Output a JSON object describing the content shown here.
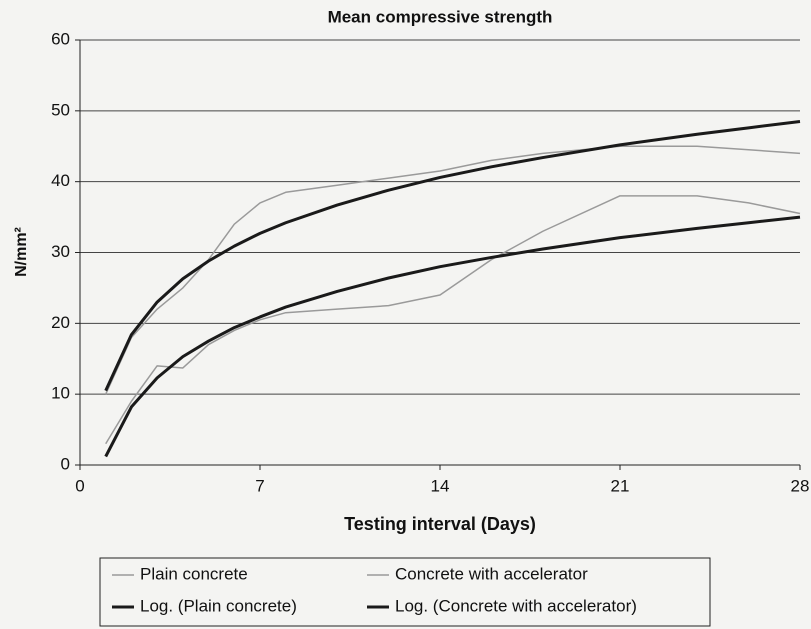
{
  "chart_data": {
    "type": "line",
    "title": "Mean compressive strength",
    "xlabel": "Testing interval (Days)",
    "ylabel": "N/mm²",
    "x": [
      1,
      2,
      3,
      4,
      5,
      6,
      7,
      8,
      10,
      12,
      14,
      16,
      18,
      21,
      24,
      26,
      28
    ],
    "series": [
      {
        "name": "Plain concrete",
        "color": "#9a9a9a",
        "width": 1.5,
        "values": [
          3,
          9,
          14,
          13.7,
          17,
          19,
          20.5,
          21.5,
          22,
          22.5,
          24,
          29,
          33,
          38,
          38,
          37,
          35.5
        ]
      },
      {
        "name": "Concrete with accelerator",
        "color": "#9a9a9a",
        "width": 1.5,
        "values": [
          10,
          18,
          22,
          25,
          29,
          34,
          37,
          38.5,
          39.5,
          40.5,
          41.5,
          43,
          44,
          45,
          45,
          44.5,
          44
        ]
      },
      {
        "name": "Log. (Plain concrete)",
        "color": "#1a1a1a",
        "width": 3,
        "values": [
          1.2,
          8.2,
          12.3,
          15.3,
          17.5,
          19.4,
          20.9,
          22.3,
          24.5,
          26.4,
          28.0,
          29.3,
          30.5,
          32.1,
          33.4,
          34.2,
          35.0
        ]
      },
      {
        "name": "Log. (Concrete with accelerator)",
        "color": "#1a1a1a",
        "width": 3,
        "values": [
          10.5,
          18.4,
          23.0,
          26.3,
          28.8,
          30.9,
          32.7,
          34.2,
          36.7,
          38.8,
          40.6,
          42.1,
          43.4,
          45.2,
          46.7,
          47.6,
          48.5
        ]
      }
    ],
    "xlim": [
      0,
      28
    ],
    "xticks": [
      0,
      7,
      14,
      21,
      28
    ],
    "ylim": [
      0,
      60
    ],
    "yticks": [
      0,
      10,
      20,
      30,
      40,
      50,
      60
    ],
    "grid": true,
    "legend": "bottom"
  }
}
